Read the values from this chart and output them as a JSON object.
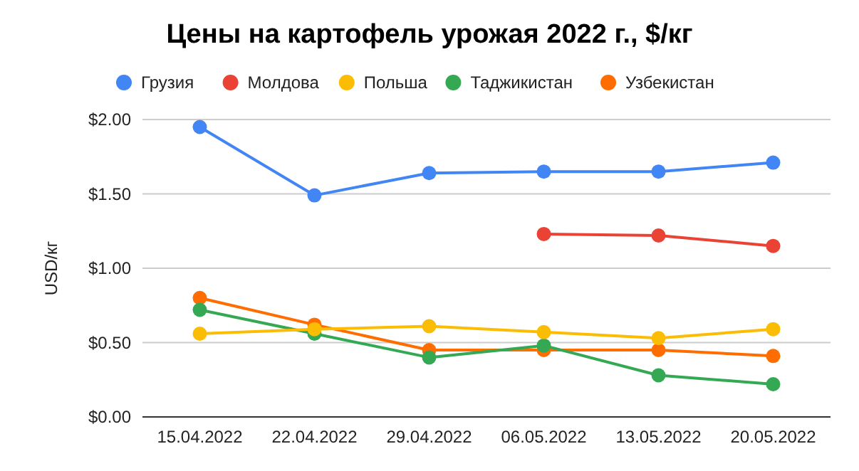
{
  "chart_data": {
    "type": "line",
    "title": "Цены на картофель урожая 2022 г., $/кг",
    "ylabel": "USD/кг",
    "categories": [
      "15.04.2022",
      "22.04.2022",
      "29.04.2022",
      "06.05.2022",
      "13.05.2022",
      "20.05.2022"
    ],
    "series": [
      {
        "name": "Грузия",
        "color": "#4285f4",
        "values": [
          1.95,
          1.49,
          1.64,
          1.65,
          1.65,
          1.71
        ]
      },
      {
        "name": "Молдова",
        "color": "#ea4335",
        "values": [
          null,
          null,
          null,
          1.23,
          1.22,
          1.15
        ]
      },
      {
        "name": "Польша",
        "color": "#fbbc04",
        "values": [
          0.56,
          0.59,
          0.61,
          0.57,
          0.53,
          0.59
        ]
      },
      {
        "name": "Таджикистан",
        "color": "#34a853",
        "values": [
          0.72,
          0.56,
          0.4,
          0.48,
          0.28,
          0.22
        ]
      },
      {
        "name": "Узбекистан",
        "color": "#ff6d01",
        "values": [
          0.8,
          0.62,
          0.45,
          0.45,
          0.45,
          0.41
        ]
      }
    ],
    "ylim": [
      0,
      2
    ],
    "yticks": [
      {
        "value": 0,
        "label": "$0.00"
      },
      {
        "value": 0.5,
        "label": "$0.50"
      },
      {
        "value": 1,
        "label": "$1.00"
      },
      {
        "value": 1.5,
        "label": "$1.50"
      },
      {
        "value": 2,
        "label": "$2.00"
      }
    ],
    "grid": "y",
    "legend": "top left",
    "marker": "circle",
    "line_style": "solid"
  }
}
